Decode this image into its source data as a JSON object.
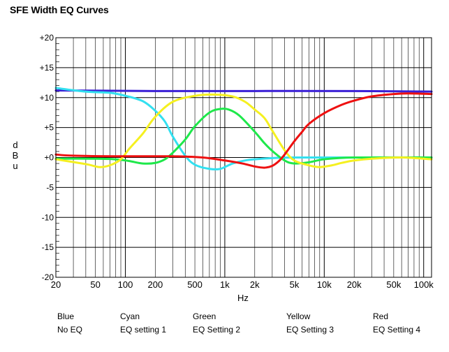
{
  "chart_data": {
    "type": "line",
    "title": "SFE Width EQ Curves",
    "xlabel": "Hz",
    "ylabel": "dBu",
    "x_scale": "log",
    "xlim": [
      20,
      120000
    ],
    "ylim": [
      -20,
      20
    ],
    "grid": true,
    "x_tick_values": [
      20,
      50,
      100,
      200,
      500,
      1000,
      2000,
      5000,
      10000,
      20000,
      50000,
      100000
    ],
    "x_tick_labels": [
      "20",
      "50",
      "100",
      "200",
      "500",
      "1k",
      "2k",
      "5k",
      "10k",
      "20k",
      "50k",
      "100k"
    ],
    "y_tick_values": [
      20,
      15,
      10,
      5,
      0,
      -5,
      -10,
      -15,
      -20
    ],
    "y_tick_labels": [
      "+20",
      "+15",
      "+10",
      "+5",
      "+0",
      "-5",
      "-10",
      "-15",
      "-20"
    ],
    "series": [
      {
        "name": "Blue",
        "color": "#3a1fd6",
        "points": [
          [
            20,
            11.2
          ],
          [
            200,
            11.1
          ],
          [
            2000,
            11.1
          ],
          [
            20000,
            11.1
          ],
          [
            120000,
            11.0
          ]
        ]
      },
      {
        "name": "Cyan",
        "color": "#33e0f0",
        "points": [
          [
            20,
            11.6
          ],
          [
            40,
            11.0
          ],
          [
            70,
            10.8
          ],
          [
            100,
            10.3
          ],
          [
            150,
            9.4
          ],
          [
            200,
            7.8
          ],
          [
            250,
            6.0
          ],
          [
            300,
            3.5
          ],
          [
            400,
            0.3
          ],
          [
            500,
            -1.2
          ],
          [
            700,
            -1.9
          ],
          [
            900,
            -1.9
          ],
          [
            1200,
            -1.0
          ],
          [
            1600,
            -0.5
          ],
          [
            2000,
            -0.3
          ],
          [
            3000,
            -0.1
          ],
          [
            5000,
            0.0
          ],
          [
            20000,
            0.0
          ],
          [
            120000,
            0.0
          ]
        ]
      },
      {
        "name": "Green",
        "color": "#1ee84a",
        "points": [
          [
            20,
            -0.2
          ],
          [
            50,
            -0.2
          ],
          [
            80,
            -0.3
          ],
          [
            110,
            -0.6
          ],
          [
            150,
            -1.0
          ],
          [
            200,
            -0.9
          ],
          [
            250,
            -0.3
          ],
          [
            300,
            0.8
          ],
          [
            400,
            3.0
          ],
          [
            500,
            5.2
          ],
          [
            700,
            7.5
          ],
          [
            900,
            8.1
          ],
          [
            1100,
            8.0
          ],
          [
            1400,
            7.0
          ],
          [
            2000,
            4.3
          ],
          [
            2500,
            2.4
          ],
          [
            3000,
            1.1
          ],
          [
            4000,
            -0.5
          ],
          [
            5000,
            -1.0
          ],
          [
            7000,
            -0.8
          ],
          [
            10000,
            -0.3
          ],
          [
            20000,
            0.0
          ],
          [
            120000,
            0.0
          ]
        ]
      },
      {
        "name": "Yellow",
        "color": "#f5f020",
        "points": [
          [
            20,
            -0.3
          ],
          [
            40,
            -1.1
          ],
          [
            55,
            -1.6
          ],
          [
            70,
            -1.3
          ],
          [
            90,
            -0.3
          ],
          [
            110,
            1.5
          ],
          [
            150,
            4.0
          ],
          [
            200,
            6.8
          ],
          [
            300,
            9.3
          ],
          [
            500,
            10.3
          ],
          [
            800,
            10.5
          ],
          [
            1200,
            10.2
          ],
          [
            1600,
            9.3
          ],
          [
            2000,
            8.0
          ],
          [
            2500,
            6.6
          ],
          [
            3000,
            4.5
          ],
          [
            4000,
            1.2
          ],
          [
            5000,
            -0.5
          ],
          [
            7000,
            -1.3
          ],
          [
            9000,
            -1.6
          ],
          [
            12000,
            -1.3
          ],
          [
            15000,
            -0.9
          ],
          [
            20000,
            -0.5
          ],
          [
            30000,
            -0.2
          ],
          [
            60000,
            0.0
          ],
          [
            120000,
            -0.3
          ]
        ]
      },
      {
        "name": "Red",
        "color": "#ee1010",
        "points": [
          [
            20,
            0.5
          ],
          [
            30,
            0.3
          ],
          [
            100,
            0.2
          ],
          [
            300,
            0.2
          ],
          [
            600,
            0.0
          ],
          [
            1000,
            -0.5
          ],
          [
            1500,
            -1.0
          ],
          [
            2000,
            -1.5
          ],
          [
            2500,
            -1.7
          ],
          [
            3000,
            -1.4
          ],
          [
            3500,
            -0.6
          ],
          [
            4000,
            0.5
          ],
          [
            5000,
            2.7
          ],
          [
            6000,
            4.3
          ],
          [
            7000,
            5.6
          ],
          [
            10000,
            7.4
          ],
          [
            15000,
            8.8
          ],
          [
            20000,
            9.5
          ],
          [
            30000,
            10.2
          ],
          [
            50000,
            10.6
          ],
          [
            70000,
            10.7
          ],
          [
            120000,
            10.6
          ]
        ]
      }
    ]
  },
  "legend": [
    {
      "color_name": "Blue",
      "setting": "No EQ"
    },
    {
      "color_name": "Cyan",
      "setting": "EQ setting 1"
    },
    {
      "color_name": "Green",
      "setting": "EQ Setting 2"
    },
    {
      "color_name": "Yellow",
      "setting": "EQ Setting 3"
    },
    {
      "color_name": "Red",
      "setting": "EQ Setting 4"
    }
  ]
}
